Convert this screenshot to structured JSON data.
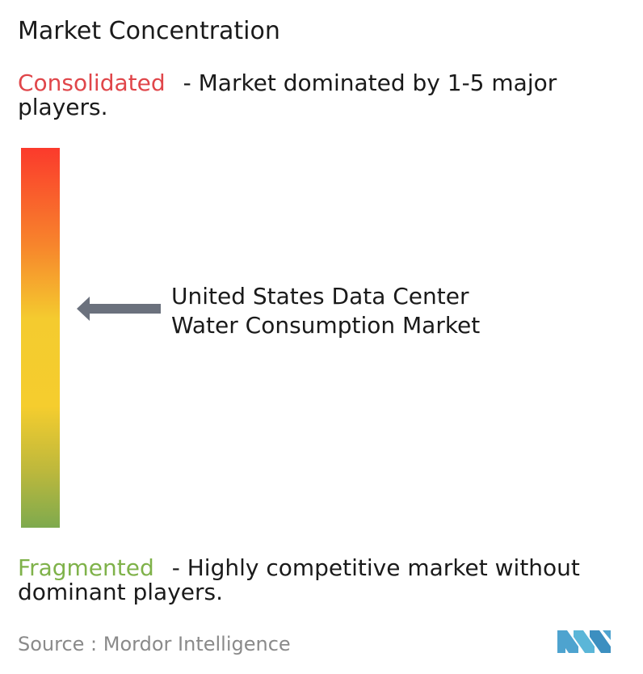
{
  "title": "Market Concentration",
  "consolidated": {
    "term": "Consolidated",
    "description": "- Market dominated by 1-5 major players."
  },
  "fragmented": {
    "term": "Fragmented",
    "description": "- Highly competitive market without dominant players."
  },
  "market_label": "United States Data Center Water Consumption Market",
  "marker_position": 0.43,
  "source": "Source :  Mordor Intelligence",
  "colors": {
    "consolidated_text": "#e0464a",
    "fragmented_text": "#7fb24a",
    "scale_top": "#fb3a2c",
    "scale_middle": "#f5cd2e",
    "scale_bottom": "#7eaa4e",
    "arrow": "#6b717d",
    "logo": "#4ea3cf"
  },
  "icons": {
    "arrow": "arrow-left-icon",
    "logo": "mordor-intelligence-logo"
  }
}
